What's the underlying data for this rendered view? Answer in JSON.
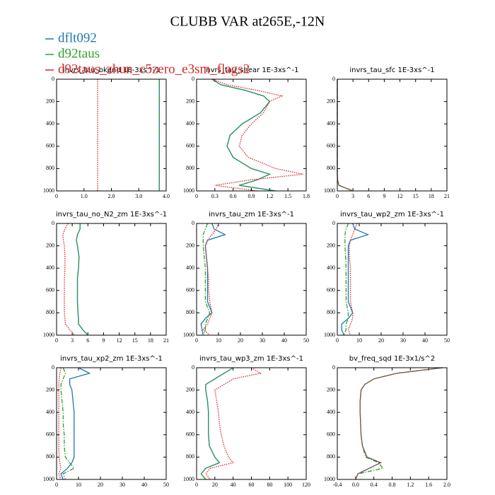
{
  "title": "CLUBB VAR at265E,-12N",
  "chart_data": [
    {
      "type": "line",
      "title": "invrs_tau_bkgnd   1E-3xs^-1",
      "y": [
        0,
        50,
        100,
        150,
        200,
        300,
        400,
        500,
        600,
        700,
        800,
        850,
        900,
        950,
        1000
      ],
      "ylim": [
        1000,
        0
      ],
      "yticks": [
        0,
        200,
        400,
        600,
        800,
        1000
      ],
      "xlim": [
        0,
        4
      ],
      "xticks": [
        0,
        {
          "value": 1,
          "label": "1.0"
        },
        {
          "value": 2,
          "label": "2.0"
        },
        {
          "value": 3,
          "label": "3.0"
        },
        {
          "value": 4,
          "label": "4.0"
        }
      ],
      "series": [
        {
          "name": "dflt092",
          "color": "#1f77b4",
          "style": "solid",
          "values": [
            3.75,
            3.75,
            3.75,
            3.75,
            3.75,
            3.75,
            3.75,
            3.75,
            3.75,
            3.75,
            3.75,
            3.75,
            3.75,
            3.75,
            3.75
          ]
        },
        {
          "name": "d92taus",
          "color": "#2ca02c",
          "style": "dashdot",
          "values": [
            3.75,
            3.75,
            3.75,
            3.75,
            3.75,
            3.75,
            3.75,
            3.75,
            3.75,
            3.75,
            3.75,
            3.75,
            3.75,
            3.75,
            3.75
          ]
        },
        {
          "name": "d92taus_zhun_c5zero_e3sm_flags2",
          "color": "#d62728",
          "style": "dotted",
          "values": [
            1.5,
            1.5,
            1.5,
            1.5,
            1.5,
            1.5,
            1.5,
            1.5,
            1.5,
            1.5,
            1.5,
            1.5,
            1.5,
            1.5,
            1.5
          ]
        }
      ]
    },
    {
      "type": "line",
      "title": "invrs_tau_shear   1E-3xs^-1",
      "y": [
        0,
        50,
        100,
        150,
        200,
        300,
        400,
        500,
        600,
        700,
        800,
        850,
        900,
        950,
        1000
      ],
      "ylim": [
        1000,
        0
      ],
      "yticks": [
        0,
        200,
        400,
        600,
        800,
        1000
      ],
      "xlim": [
        0,
        1.8
      ],
      "xticks": [
        0,
        0.3,
        0.6,
        0.9,
        1.2,
        1.5,
        1.8
      ],
      "series": [
        {
          "name": "dflt092",
          "color": "#1f77b4",
          "style": "solid",
          "values": [
            0.25,
            0.4,
            0.8,
            1.1,
            1.2,
            1.05,
            0.75,
            0.55,
            0.5,
            0.6,
            0.9,
            1.2,
            1.0,
            0.7,
            1.3
          ]
        },
        {
          "name": "d92taus",
          "color": "#2ca02c",
          "style": "dashdot",
          "values": [
            0.25,
            0.4,
            0.8,
            1.1,
            1.2,
            1.05,
            0.75,
            0.55,
            0.5,
            0.6,
            0.9,
            1.2,
            1.0,
            0.7,
            1.3
          ]
        },
        {
          "name": "d92taus_zhun_c5zero_e3sm_flags2",
          "color": "#d62728",
          "style": "dotted",
          "values": [
            0.25,
            0.5,
            1.0,
            1.4,
            1.2,
            1.1,
            0.9,
            0.75,
            0.7,
            0.85,
            1.3,
            1.75,
            0.9,
            0.3,
            1.0
          ]
        }
      ]
    },
    {
      "type": "line",
      "title": "invrs_tau_sfc   1E-3xs^-1",
      "y": [
        0,
        50,
        100,
        150,
        200,
        300,
        400,
        500,
        600,
        700,
        800,
        850,
        900,
        950,
        1000
      ],
      "ylim": [
        1000,
        0
      ],
      "yticks": [
        0,
        200,
        400,
        600,
        800,
        1000
      ],
      "xlim": [
        0,
        21
      ],
      "xticks": [
        0,
        3,
        6,
        9,
        12,
        15,
        18,
        21
      ],
      "series": [
        {
          "name": "dflt092",
          "color": "#1f77b4",
          "style": "solid",
          "values": [
            0,
            0,
            0,
            0,
            0,
            0,
            0,
            0,
            0,
            0,
            0,
            0,
            0.05,
            0.3,
            3
          ]
        },
        {
          "name": "d92taus",
          "color": "#2ca02c",
          "style": "dashdot",
          "values": [
            0,
            0,
            0,
            0,
            0,
            0,
            0,
            0,
            0,
            0,
            0,
            0,
            0.05,
            0.3,
            3
          ]
        },
        {
          "name": "d92taus_zhun_c5zero_e3sm_flags2",
          "color": "#d62728",
          "style": "dotted",
          "values": [
            0,
            0,
            0,
            0,
            0,
            0,
            0,
            0,
            0,
            0,
            0,
            0,
            0.05,
            0.3,
            3
          ]
        }
      ]
    },
    {
      "type": "line",
      "title": "invrs_tau_no_N2_zm   1E-3xs^-1",
      "y": [
        0,
        50,
        100,
        150,
        200,
        300,
        400,
        500,
        600,
        700,
        800,
        850,
        900,
        950,
        1000
      ],
      "ylim": [
        1000,
        0
      ],
      "yticks": [
        0,
        200,
        400,
        600,
        800,
        1000
      ],
      "xlim": [
        0,
        21
      ],
      "xticks": [
        0,
        3,
        6,
        9,
        12,
        15,
        18,
        21
      ],
      "series": [
        {
          "name": "dflt092",
          "color": "#1f77b4",
          "style": "solid",
          "values": [
            4.5,
            4.5,
            4,
            3.8,
            4,
            4.3,
            4.2,
            4,
            4,
            4,
            4.1,
            4.2,
            4.2,
            5,
            6
          ]
        },
        {
          "name": "d92taus",
          "color": "#2ca02c",
          "style": "dashdot",
          "values": [
            4.5,
            4.5,
            4,
            3.8,
            4,
            4.3,
            4.2,
            4,
            4,
            4,
            4.1,
            4.2,
            4.2,
            5,
            6
          ]
        },
        {
          "name": "d92taus_zhun_c5zero_e3sm_flags2",
          "color": "#d62728",
          "style": "dotted",
          "values": [
            2.2,
            1.6,
            1.2,
            1.3,
            1.5,
            1.6,
            1.6,
            1.5,
            1.5,
            1.5,
            1.5,
            1.6,
            1.7,
            2.5,
            3.5
          ]
        }
      ]
    },
    {
      "type": "line",
      "title": "invrs_tau_zm   1E-3xs^-1",
      "y": [
        0,
        50,
        100,
        150,
        200,
        300,
        400,
        500,
        600,
        700,
        800,
        850,
        900,
        950,
        1000
      ],
      "ylim": [
        1000,
        0
      ],
      "yticks": [
        0,
        200,
        400,
        600,
        800,
        1000
      ],
      "xlim": [
        0,
        50
      ],
      "xticks": [
        0,
        10,
        20,
        30,
        40,
        50
      ],
      "series": [
        {
          "name": "dflt092",
          "color": "#1f77b4",
          "style": "solid",
          "values": [
            7,
            8,
            13,
            5,
            4,
            4.5,
            5,
            5,
            5,
            5,
            7,
            4,
            2,
            2.5,
            3
          ]
        },
        {
          "name": "d92taus",
          "color": "#2ca02c",
          "style": "dashdot",
          "values": [
            5,
            4,
            3,
            3,
            3,
            3.5,
            4,
            4,
            4,
            4,
            6,
            5,
            4,
            4,
            3
          ]
        },
        {
          "name": "d92taus_zhun_c5zero_e3sm_flags2",
          "color": "#d62728",
          "style": "dotted",
          "values": [
            10,
            9,
            7,
            5,
            4,
            4.5,
            5,
            5.5,
            5.5,
            6,
            7,
            6,
            5,
            3,
            6
          ]
        }
      ]
    },
    {
      "type": "line",
      "title": "invrs_tau_wp2_zm   1E-3xs^-1",
      "y": [
        0,
        50,
        100,
        150,
        200,
        300,
        400,
        500,
        600,
        700,
        800,
        850,
        900,
        950,
        1000
      ],
      "ylim": [
        1000,
        0
      ],
      "yticks": [
        0,
        200,
        400,
        600,
        800,
        1000
      ],
      "xlim": [
        0,
        50
      ],
      "xticks": [
        0,
        10,
        20,
        30,
        40,
        50
      ],
      "series": [
        {
          "name": "dflt092",
          "color": "#1f77b4",
          "style": "solid",
          "values": [
            7,
            8,
            14,
            6,
            5,
            5,
            5,
            5,
            5,
            5,
            7,
            5,
            2,
            2,
            3
          ]
        },
        {
          "name": "d92taus",
          "color": "#2ca02c",
          "style": "dashdot",
          "values": [
            5,
            4,
            3.5,
            3.5,
            3.5,
            3.8,
            4,
            4,
            4,
            4,
            5,
            5,
            4,
            4,
            3
          ]
        },
        {
          "name": "d92taus_zhun_c5zero_e3sm_flags2",
          "color": "#d62728",
          "style": "dotted",
          "values": [
            9,
            8,
            7,
            6,
            5.5,
            5.5,
            6,
            6,
            6,
            6,
            7,
            7,
            6,
            5,
            6
          ]
        }
      ]
    },
    {
      "type": "line",
      "title": "invrs_tau_xp2_zm   1E-3xs^-1",
      "y": [
        0,
        50,
        100,
        150,
        200,
        300,
        400,
        500,
        600,
        700,
        800,
        850,
        900,
        950,
        1000
      ],
      "ylim": [
        1000,
        0
      ],
      "yticks": [
        0,
        200,
        400,
        600,
        800,
        1000
      ],
      "xlim": [
        0,
        50
      ],
      "xticks": [
        0,
        10,
        20,
        30,
        40,
        50
      ],
      "series": [
        {
          "name": "dflt092",
          "color": "#1f77b4",
          "style": "solid",
          "values": [
            10,
            15,
            6,
            6,
            7,
            7.5,
            8,
            8,
            8,
            8,
            8,
            7,
            5,
            2,
            3
          ]
        },
        {
          "name": "d92taus",
          "color": "#2ca02c",
          "style": "dashdot",
          "values": [
            3,
            4,
            3,
            2,
            2,
            2.5,
            3,
            3,
            3.5,
            3.5,
            4,
            6,
            8,
            3,
            4
          ]
        },
        {
          "name": "d92taus_zhun_c5zero_e3sm_flags2",
          "color": "#d62728",
          "style": "dotted",
          "values": [
            2,
            1.5,
            1.2,
            1,
            1,
            1,
            1,
            1,
            1,
            1,
            1.2,
            1.5,
            2,
            1,
            2
          ]
        }
      ]
    },
    {
      "type": "line",
      "title": "invrs_tau_wp3_zm   1E-3xs^-1",
      "y": [
        0,
        50,
        100,
        150,
        200,
        300,
        400,
        500,
        600,
        700,
        800,
        850,
        900,
        950,
        1000
      ],
      "ylim": [
        1000,
        0
      ],
      "yticks": [
        0,
        200,
        400,
        600,
        800,
        1000
      ],
      "xlim": [
        0,
        120
      ],
      "xticks": [
        0,
        20,
        40,
        60,
        80,
        100,
        120
      ],
      "series": [
        {
          "name": "dflt092",
          "color": "#1f77b4",
          "style": "solid",
          "values": [
            40,
            30,
            20,
            10,
            10,
            12,
            13,
            13,
            13,
            14,
            20,
            25,
            10,
            5,
            10
          ]
        },
        {
          "name": "d92taus",
          "color": "#2ca02c",
          "style": "dashdot",
          "values": [
            40,
            30,
            20,
            10,
            10,
            12,
            13,
            13,
            13,
            14,
            20,
            25,
            10,
            5,
            10
          ]
        },
        {
          "name": "d92taus_zhun_c5zero_e3sm_flags2",
          "color": "#d62728",
          "style": "dotted",
          "values": [
            60,
            70,
            40,
            30,
            20,
            22,
            24,
            25,
            27,
            30,
            35,
            40,
            15,
            10,
            15
          ]
        }
      ]
    },
    {
      "type": "line",
      "title": "bv_freq_sqd   1E-3x1/s^2",
      "y": [
        0,
        50,
        100,
        150,
        200,
        300,
        400,
        500,
        600,
        700,
        800,
        850,
        900,
        950,
        1000
      ],
      "ylim": [
        1000,
        0
      ],
      "yticks": [
        0,
        200,
        400,
        600,
        800,
        1000
      ],
      "xlim": [
        -0.4,
        2.0
      ],
      "xticks": [
        -0.4,
        {
          "value": 0,
          "label": "0.0"
        },
        0.4,
        0.8,
        1.2,
        1.6,
        {
          "value": 2,
          "label": "2.0"
        }
      ],
      "series": [
        {
          "name": "dflt092",
          "color": "#1f77b4",
          "style": "solid",
          "values": [
            1.9,
            0.9,
            0.4,
            0.2,
            0.12,
            0.1,
            0.1,
            0.11,
            0.12,
            0.15,
            0.25,
            0.55,
            0.3,
            0.05,
            0
          ]
        },
        {
          "name": "d92taus",
          "color": "#2ca02c",
          "style": "dashdot",
          "values": [
            1.9,
            0.9,
            0.4,
            0.2,
            0.12,
            0.1,
            0.1,
            0.11,
            0.12,
            0.15,
            0.22,
            0.5,
            0.6,
            0.05,
            0
          ]
        },
        {
          "name": "d92taus_zhun_c5zero_e3sm_flags2",
          "color": "#d62728",
          "style": "dotted",
          "values": [
            1.9,
            0.9,
            0.4,
            0.2,
            0.12,
            0.1,
            0.1,
            0.11,
            0.12,
            0.15,
            0.25,
            0.55,
            0.3,
            0.05,
            0
          ]
        }
      ]
    }
  ]
}
